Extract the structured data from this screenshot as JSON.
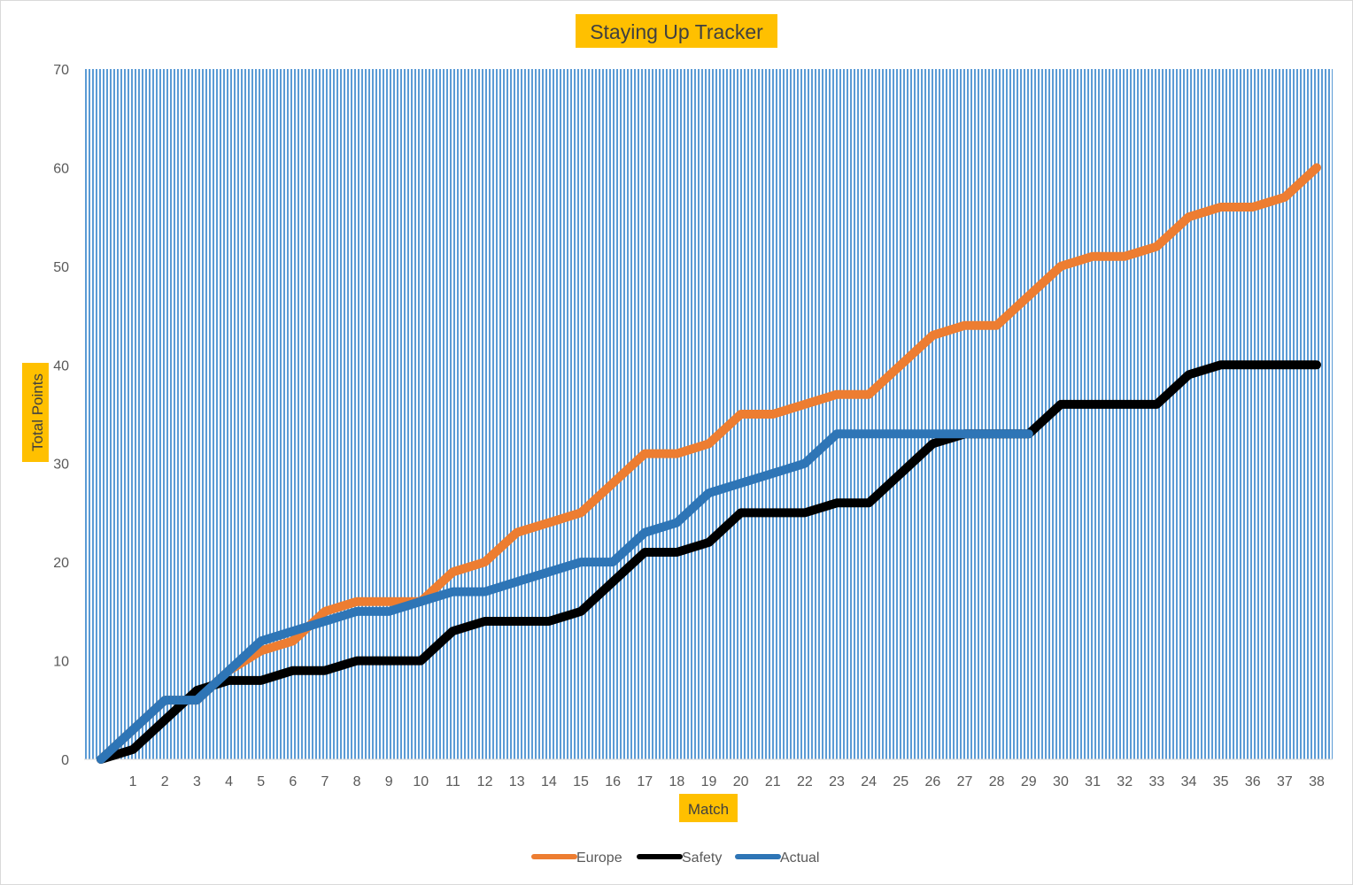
{
  "chart_data": {
    "type": "line",
    "title": "Staying Up Tracker",
    "xlabel": "Match",
    "ylabel": "Total Points",
    "x": [
      0,
      1,
      2,
      3,
      4,
      5,
      6,
      7,
      8,
      9,
      10,
      11,
      12,
      13,
      14,
      15,
      16,
      17,
      18,
      19,
      20,
      21,
      22,
      23,
      24,
      25,
      26,
      27,
      28,
      29,
      30,
      31,
      32,
      33,
      34,
      35,
      36,
      37,
      38
    ],
    "x_tick_labels": [
      "1",
      "2",
      "3",
      "4",
      "5",
      "6",
      "7",
      "8",
      "9",
      "10",
      "11",
      "12",
      "13",
      "14",
      "15",
      "16",
      "17",
      "18",
      "19",
      "20",
      "21",
      "22",
      "23",
      "24",
      "25",
      "26",
      "27",
      "28",
      "29",
      "30",
      "31",
      "32",
      "33",
      "34",
      "35",
      "36",
      "37",
      "38"
    ],
    "ylim": [
      0,
      70
    ],
    "y_ticks": [
      0,
      10,
      20,
      30,
      40,
      50,
      60,
      70
    ],
    "grid": false,
    "plot_area_fill": "vertical-striped-blue",
    "legend_position": "bottom",
    "series": [
      {
        "name": "Europe",
        "color": "#ed7d31",
        "values": [
          0,
          3,
          6,
          6,
          9,
          11,
          12,
          15,
          16,
          16,
          16,
          19,
          20,
          23,
          24,
          25,
          28,
          31,
          31,
          32,
          35,
          35,
          36,
          37,
          37,
          40,
          43,
          44,
          44,
          47,
          50,
          51,
          51,
          52,
          55,
          56,
          56,
          57,
          60
        ]
      },
      {
        "name": "Safety",
        "color": "#000000",
        "values": [
          0,
          1,
          4,
          7,
          8,
          8,
          9,
          9,
          10,
          10,
          10,
          13,
          14,
          14,
          14,
          15,
          18,
          21,
          21,
          22,
          25,
          25,
          25,
          26,
          26,
          29,
          32,
          33,
          33,
          33,
          36,
          36,
          36,
          36,
          39,
          40,
          40,
          40,
          40
        ]
      },
      {
        "name": "Actual",
        "color": "#2e75b6",
        "values": [
          0,
          3,
          6,
          6,
          9,
          12,
          13,
          14,
          15,
          15,
          16,
          17,
          17,
          18,
          19,
          20,
          20,
          23,
          24,
          27,
          28,
          29,
          30,
          33,
          33,
          33,
          33,
          33,
          33,
          33,
          null,
          null,
          null,
          null,
          null,
          null,
          null,
          null,
          null
        ]
      }
    ],
    "label_highlight_color": "#ffc000",
    "plot_stripe_color": "#5b9bd5"
  }
}
